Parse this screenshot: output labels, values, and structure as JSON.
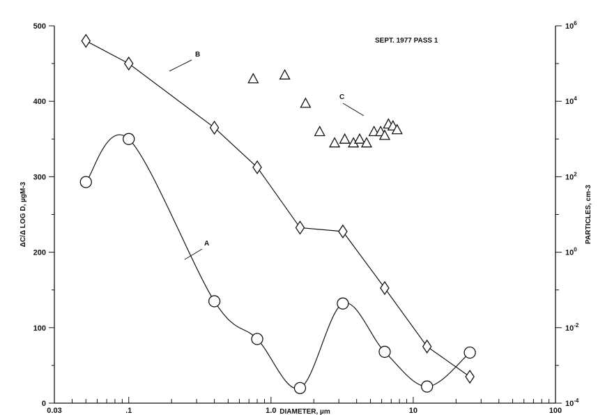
{
  "chart_data": {
    "type": "line",
    "title": "",
    "annotation": "SEPT. 1977 PASS 1",
    "xlabel": "DIAMETER, µm",
    "ylabel_left": "ΔC/Δ LOG D, µgM-3",
    "ylabel_right": "PARTICLES, cm-3",
    "x_scale": "log",
    "xlim": [
      0.03,
      100
    ],
    "ylim_left": [
      0,
      500
    ],
    "ylim_right_log10": [
      -4,
      6
    ],
    "x_ticks": [
      {
        "value": 0.03,
        "label": "0.03"
      },
      {
        "value": 0.1,
        "label": ".1"
      },
      {
        "value": 1,
        "label": "1.0"
      },
      {
        "value": 10,
        "label": "10"
      },
      {
        "value": 100,
        "label": "100"
      }
    ],
    "y_left_ticks": [
      0,
      100,
      200,
      300,
      400,
      500
    ],
    "y_right_ticks": [
      {
        "exp": -4,
        "base": "10",
        "sup": "-4"
      },
      {
        "exp": -2,
        "base": "10",
        "sup": "-2"
      },
      {
        "exp": 0,
        "base": "10",
        "sup": "0"
      },
      {
        "exp": 2,
        "base": "10",
        "sup": "2"
      },
      {
        "exp": 4,
        "base": "10",
        "sup": "4"
      },
      {
        "exp": 6,
        "base": "10",
        "sup": "6"
      }
    ],
    "grid": false,
    "series": [
      {
        "name": "A",
        "axis": "left",
        "marker": "circle",
        "smooth": true,
        "points": [
          [
            0.05,
            293
          ],
          [
            0.1,
            350
          ],
          [
            0.4,
            135
          ],
          [
            0.8,
            85
          ],
          [
            1.6,
            20
          ],
          [
            3.2,
            132
          ],
          [
            6.3,
            68
          ],
          [
            12.5,
            22
          ],
          [
            25,
            67
          ]
        ]
      },
      {
        "name": "B",
        "axis": "right",
        "marker": "diamond",
        "smooth": false,
        "points": [
          [
            0.05,
            5.6
          ],
          [
            0.1,
            5.0
          ],
          [
            0.4,
            3.3
          ],
          [
            0.8,
            2.25
          ],
          [
            1.6,
            0.65
          ],
          [
            3.2,
            0.55
          ],
          [
            6.3,
            -0.95
          ],
          [
            12.5,
            -2.5
          ],
          [
            25,
            -3.3
          ]
        ]
      },
      {
        "name": "C",
        "axis": "right",
        "marker": "triangle",
        "smooth": false,
        "connected": false,
        "points": [
          [
            0.75,
            4.6
          ],
          [
            1.25,
            4.7
          ],
          [
            1.75,
            3.95
          ],
          [
            2.2,
            3.2
          ],
          [
            2.8,
            2.9
          ],
          [
            3.3,
            3.0
          ],
          [
            3.8,
            2.9
          ],
          [
            4.2,
            3.0
          ],
          [
            4.7,
            2.9
          ],
          [
            5.3,
            3.2
          ],
          [
            5.9,
            3.2
          ],
          [
            6.3,
            3.1
          ],
          [
            6.7,
            3.4
          ],
          [
            7.2,
            3.35
          ],
          [
            7.7,
            3.25
          ]
        ]
      }
    ],
    "annotations": [
      {
        "text": "A",
        "series": "A"
      },
      {
        "text": "B",
        "series": "B"
      },
      {
        "text": "C",
        "series": "C"
      }
    ]
  }
}
